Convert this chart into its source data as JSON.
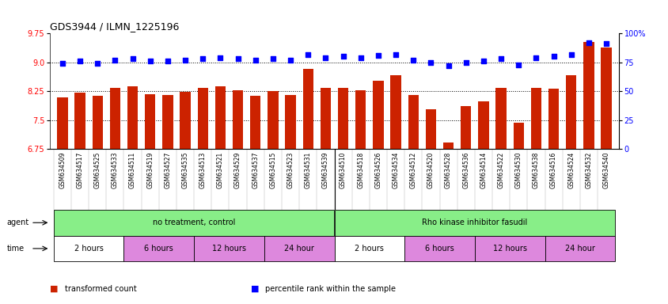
{
  "title": "GDS3944 / ILMN_1225196",
  "samples": [
    "GSM634509",
    "GSM634517",
    "GSM634525",
    "GSM634533",
    "GSM634511",
    "GSM634519",
    "GSM634527",
    "GSM634535",
    "GSM634513",
    "GSM634521",
    "GSM634529",
    "GSM634537",
    "GSM634515",
    "GSM634523",
    "GSM634531",
    "GSM634539",
    "GSM634510",
    "GSM634518",
    "GSM634526",
    "GSM634534",
    "GSM634512",
    "GSM634520",
    "GSM634528",
    "GSM634536",
    "GSM634514",
    "GSM634522",
    "GSM634530",
    "GSM634538",
    "GSM634516",
    "GSM634524",
    "GSM634532",
    "GSM634540"
  ],
  "bar_values": [
    8.08,
    8.22,
    8.14,
    8.33,
    8.38,
    8.18,
    8.16,
    8.23,
    8.34,
    8.38,
    8.28,
    8.13,
    8.26,
    8.16,
    8.83,
    8.34,
    8.33,
    8.28,
    8.52,
    8.67,
    8.16,
    7.78,
    6.92,
    7.86,
    7.98,
    8.33,
    7.43,
    8.33,
    8.32,
    8.67,
    9.52,
    9.38
  ],
  "percentile_values": [
    74,
    76,
    74,
    77,
    78,
    76,
    76,
    77,
    78,
    79,
    78,
    77,
    78,
    77,
    82,
    79,
    80,
    79,
    81,
    82,
    77,
    75,
    72,
    75,
    76,
    78,
    73,
    79,
    80,
    82,
    92,
    91
  ],
  "bar_color": "#cc2200",
  "dot_color": "#0000ff",
  "ylim_left": [
    6.75,
    9.75
  ],
  "ylim_right": [
    0,
    100
  ],
  "yticks_left": [
    6.75,
    7.5,
    8.25,
    9.0,
    9.75
  ],
  "yticks_right": [
    0,
    25,
    50,
    75,
    100
  ],
  "hlines": [
    7.5,
    8.25,
    9.0
  ],
  "agent_groups": [
    {
      "label": "no treatment, control",
      "start": 0,
      "end": 16,
      "color": "#88ee88"
    },
    {
      "label": "Rho kinase inhibitor fasudil",
      "start": 16,
      "end": 32,
      "color": "#88ee88"
    }
  ],
  "time_groups": [
    {
      "label": "2 hours",
      "start": 0,
      "end": 4,
      "color": "#ffffff"
    },
    {
      "label": "6 hours",
      "start": 4,
      "end": 8,
      "color": "#dd88dd"
    },
    {
      "label": "12 hours",
      "start": 8,
      "end": 12,
      "color": "#dd88dd"
    },
    {
      "label": "24 hour",
      "start": 12,
      "end": 16,
      "color": "#dd88dd"
    },
    {
      "label": "2 hours",
      "start": 16,
      "end": 20,
      "color": "#ffffff"
    },
    {
      "label": "6 hours",
      "start": 20,
      "end": 24,
      "color": "#dd88dd"
    },
    {
      "label": "12 hours",
      "start": 24,
      "end": 28,
      "color": "#dd88dd"
    },
    {
      "label": "24 hour",
      "start": 28,
      "end": 32,
      "color": "#dd88dd"
    }
  ],
  "legend_items": [
    {
      "color": "#cc2200",
      "label": "transformed count"
    },
    {
      "color": "#0000ff",
      "label": "percentile rank within the sample"
    }
  ],
  "bg_color": "#ffffff",
  "plot_area_color": "#ffffff"
}
